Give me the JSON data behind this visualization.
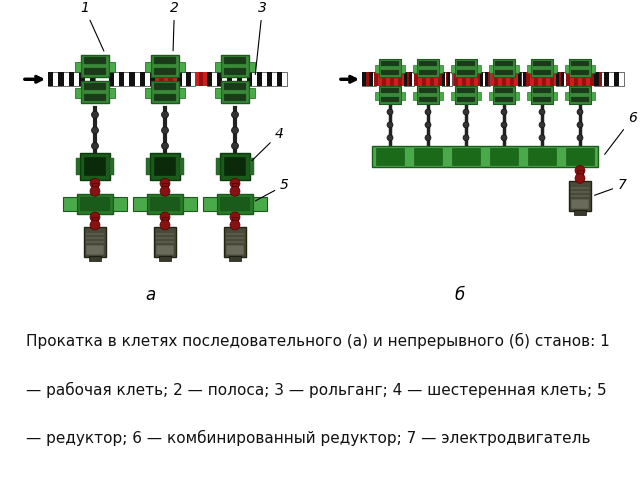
{
  "background_color": "#ffffff",
  "caption_lines": [
    "Прокатка в клетях последовательного (а) и непрерывного (б) станов: 1",
    "— рабочая клеть; 2 — полоса; 3 — рольганг; 4 — шестеренная клеть; 5",
    "— редуктор; 6 — комбинированный редуктор; 7 — электродвигатель"
  ],
  "caption_fontsize": 11.0,
  "fig_width": 6.4,
  "fig_height": 4.8,
  "label_a": "а",
  "label_b": "б",
  "green_roll": "#3a8a3a",
  "green_dark": "#1a5a1a",
  "green_light": "#4aaa4a",
  "green_reducer": "#2a7a2a",
  "red_strip": "#cc2020",
  "dark_shaft": "#222222",
  "motor_color": "#4a4a3a",
  "coupling_color": "#881111"
}
